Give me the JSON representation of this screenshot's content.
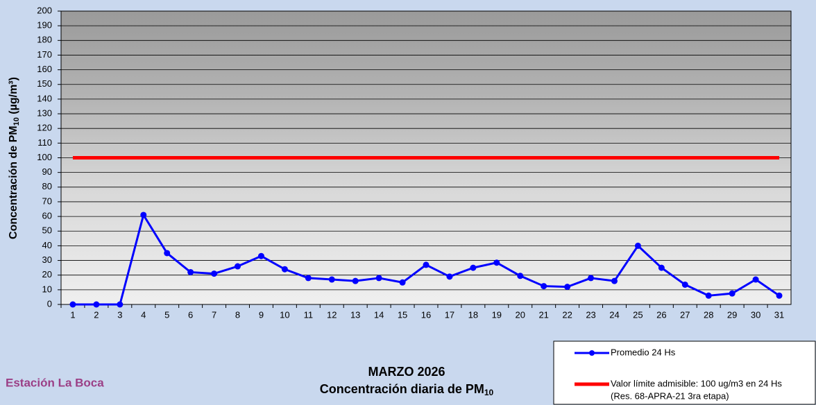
{
  "chart_data": {
    "type": "line",
    "title": "MARZO 2026",
    "subtitle": {
      "text": "Concentración diaria de PM",
      "sub": "10"
    },
    "ylabel": {
      "text": "Concentración de PM",
      "sub": "10",
      "unit": " (µg/m³)"
    },
    "annotation": "Estación La Boca",
    "legend_note": "(Res. 68-APRA-21 3ra etapa)",
    "categories": [
      "1",
      "2",
      "3",
      "4",
      "5",
      "6",
      "7",
      "8",
      "9",
      "10",
      "11",
      "12",
      "13",
      "14",
      "15",
      "16",
      "17",
      "18",
      "19",
      "20",
      "21",
      "22",
      "23",
      "24",
      "25",
      "26",
      "27",
      "28",
      "29",
      "30",
      "31"
    ],
    "series": [
      {
        "name": "Promedio 24 Hs",
        "color": "#0000ff",
        "marker": true,
        "values": [
          0,
          0,
          0,
          61,
          35,
          22,
          21,
          26,
          33,
          24,
          18,
          17,
          16,
          18,
          15,
          27,
          19,
          25,
          28.5,
          19.5,
          12.5,
          12,
          18,
          16,
          40,
          25,
          13.5,
          6,
          7.5,
          17,
          6
        ]
      },
      {
        "name": "Valor límite admisible: 100 ug/m3 en 24 Hs",
        "color": "#ff0000",
        "marker": false,
        "values": [
          100,
          100,
          100,
          100,
          100,
          100,
          100,
          100,
          100,
          100,
          100,
          100,
          100,
          100,
          100,
          100,
          100,
          100,
          100,
          100,
          100,
          100,
          100,
          100,
          100,
          100,
          100,
          100,
          100,
          100,
          100
        ]
      }
    ],
    "ylim": [
      0,
      200
    ],
    "yticks": [
      0,
      10,
      20,
      30,
      40,
      50,
      60,
      70,
      80,
      90,
      100,
      110,
      120,
      130,
      140,
      150,
      160,
      170,
      180,
      190,
      200
    ],
    "grid": true
  }
}
